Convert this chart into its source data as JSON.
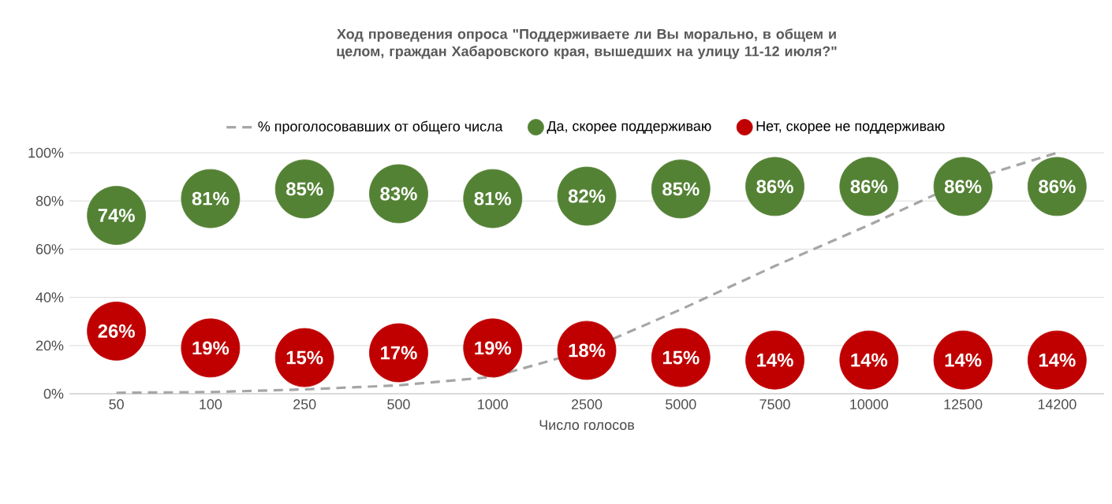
{
  "chart_data": {
    "type": "scatter",
    "title": "Ход проведения опроса \"Поддерживаете ли Вы морально, в общем и целом, граждан Хабаровского края, вышедших на улицу 11-12 июля?\"",
    "xlabel": "Число голосов",
    "categories": [
      "50",
      "100",
      "250",
      "500",
      "1000",
      "2500",
      "5000",
      "7500",
      "10000",
      "12500",
      "14200"
    ],
    "series": [
      {
        "name": "% проголосовавших от общего числа",
        "type": "line",
        "line_style": "dashed",
        "marker": "none",
        "color": "#a6a6a6",
        "values": [
          0.4,
          0.7,
          1.8,
          3.5,
          7,
          18,
          35,
          53,
          70,
          88,
          100
        ]
      },
      {
        "name": "Да, скорее поддерживаю",
        "marker": "circle",
        "color": "#548235",
        "values": [
          74,
          81,
          85,
          83,
          81,
          82,
          85,
          86,
          86,
          86,
          86
        ],
        "value_labels": [
          "74%",
          "81%",
          "85%",
          "83%",
          "81%",
          "82%",
          "85%",
          "86%",
          "86%",
          "86%",
          "86%"
        ]
      },
      {
        "name": "Нет, скорее не поддерживаю",
        "marker": "circle",
        "color": "#c00000",
        "values": [
          26,
          19,
          15,
          17,
          19,
          18,
          15,
          14,
          14,
          14,
          14
        ],
        "value_labels": [
          "26%",
          "19%",
          "15%",
          "17%",
          "19%",
          "18%",
          "15%",
          "14%",
          "14%",
          "14%",
          "14%"
        ]
      }
    ],
    "ylim": [
      0,
      100
    ],
    "yticks": [
      {
        "value": 0,
        "label": "0%"
      },
      {
        "value": 20,
        "label": "20%"
      },
      {
        "value": 40,
        "label": "40%"
      },
      {
        "value": 60,
        "label": "60%"
      },
      {
        "value": 80,
        "label": "80%"
      },
      {
        "value": 100,
        "label": "100%"
      }
    ],
    "grid": "y",
    "legend": "top"
  }
}
